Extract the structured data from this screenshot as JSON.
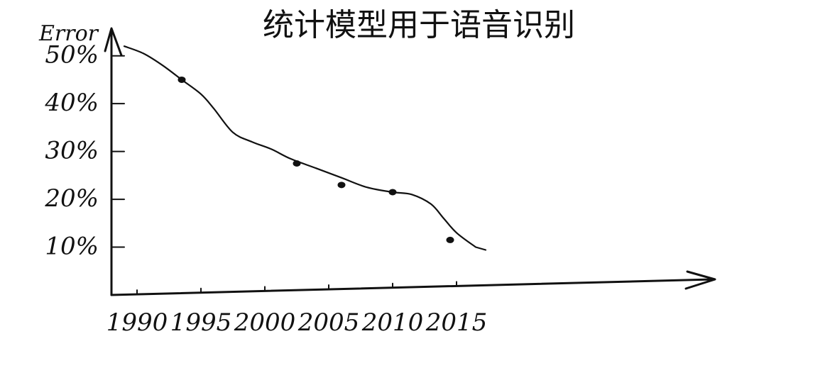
{
  "chart_data": {
    "type": "line",
    "title": "统计模型用于语音识别",
    "ylabel": "Error",
    "xlabel": "",
    "x_ticks": [
      "1990",
      "1995",
      "2000",
      "2005",
      "2010",
      "2015"
    ],
    "y_ticks": [
      "50%",
      "40%",
      "30%",
      "20%",
      "10%"
    ],
    "xlim": [
      1988,
      2035
    ],
    "ylim": [
      0,
      55
    ],
    "grid": false,
    "curve": {
      "x": [
        1989,
        1990.5,
        1992,
        1993.5,
        1995,
        1996,
        1997.5,
        1999,
        2000.5,
        2002,
        2004,
        2006,
        2008,
        2010,
        2011.5,
        2013,
        2014,
        2015,
        2016.5
      ],
      "y": [
        52,
        50.5,
        48,
        45,
        42,
        39,
        34,
        32,
        30.5,
        28.5,
        26.5,
        24.5,
        22.5,
        21.5,
        21,
        19,
        16,
        13,
        10
      ]
    },
    "series": [
      {
        "x": [
          1993.5,
          2002.5,
          2006,
          2010,
          2014.5
        ],
        "y": [
          45,
          27.5,
          23,
          21.5,
          11.5
        ]
      }
    ]
  }
}
